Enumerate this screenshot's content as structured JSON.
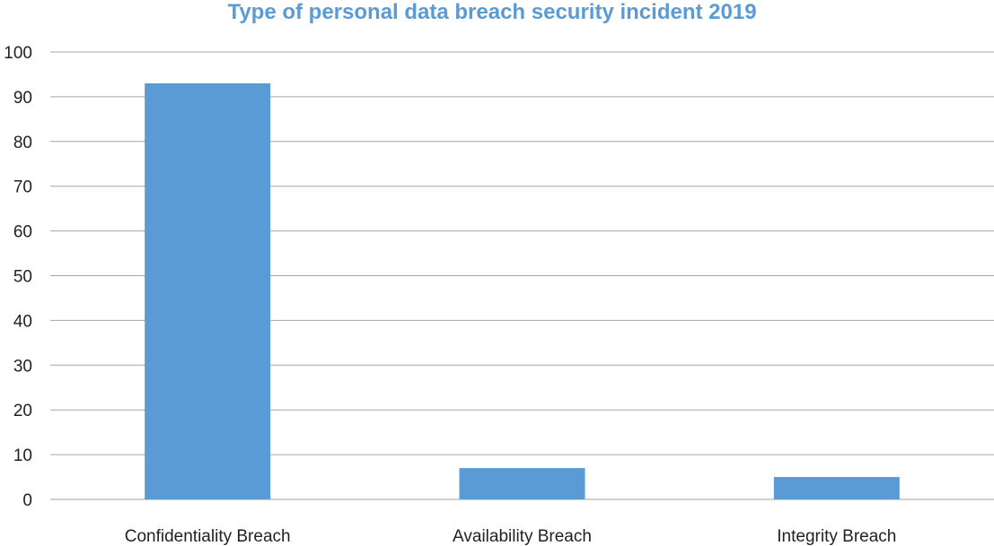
{
  "chart_data": {
    "type": "bar",
    "title": "Type of personal data breach security incident 2019",
    "categories": [
      "Confidentiality Breach",
      "Availability Breach",
      "Integrity Breach"
    ],
    "values": [
      93,
      7,
      5
    ],
    "ylim": [
      0,
      100
    ],
    "yticks": [
      0,
      10,
      20,
      30,
      40,
      50,
      60,
      70,
      80,
      90,
      100
    ],
    "xlabel": "",
    "ylabel": "",
    "grid": true,
    "legend": "none",
    "bar_color": "#5b9bd5",
    "title_color": "#5b9bd5",
    "grid_color": "#a6a6a6"
  }
}
